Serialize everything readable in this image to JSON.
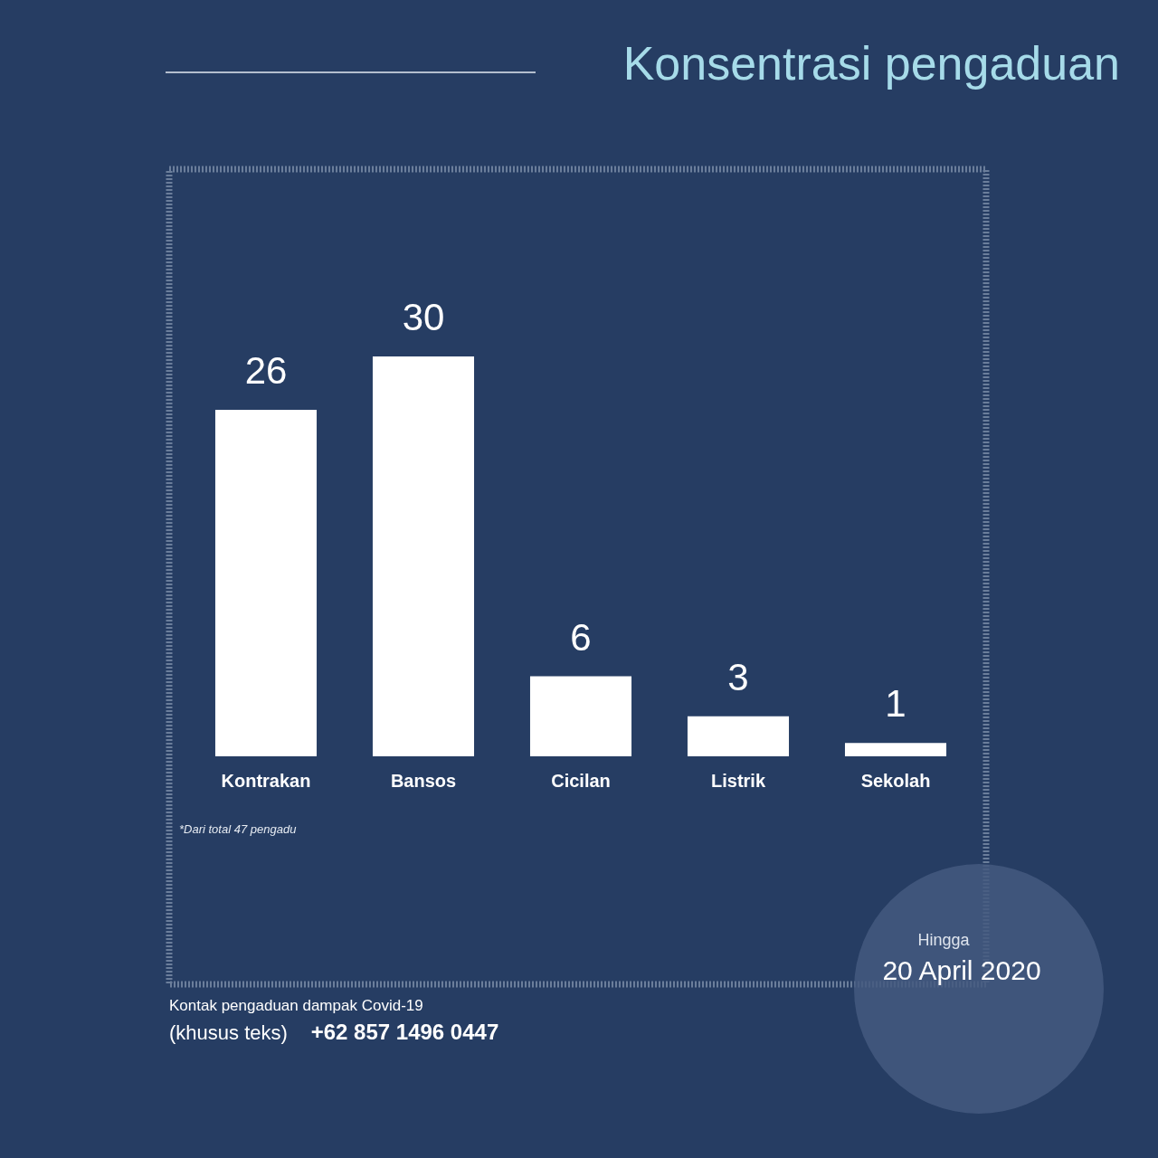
{
  "chart_data": {
    "type": "bar",
    "title": "Konsentrasi pengaduan",
    "categories": [
      "Kontrakan",
      "Bansos",
      "Cicilan",
      "Listrik",
      "Sekolah"
    ],
    "values": [
      26,
      30,
      6,
      3,
      1
    ],
    "color": "#ffffff",
    "data_labels": true,
    "annotations": [
      "*Dari total 47 pengadu",
      "Hingga",
      "20 April 2020",
      "Kontak pengaduan dampak Covid-19",
      "(khusus teks)",
      "+62 857 1496 0447"
    ]
  }
}
